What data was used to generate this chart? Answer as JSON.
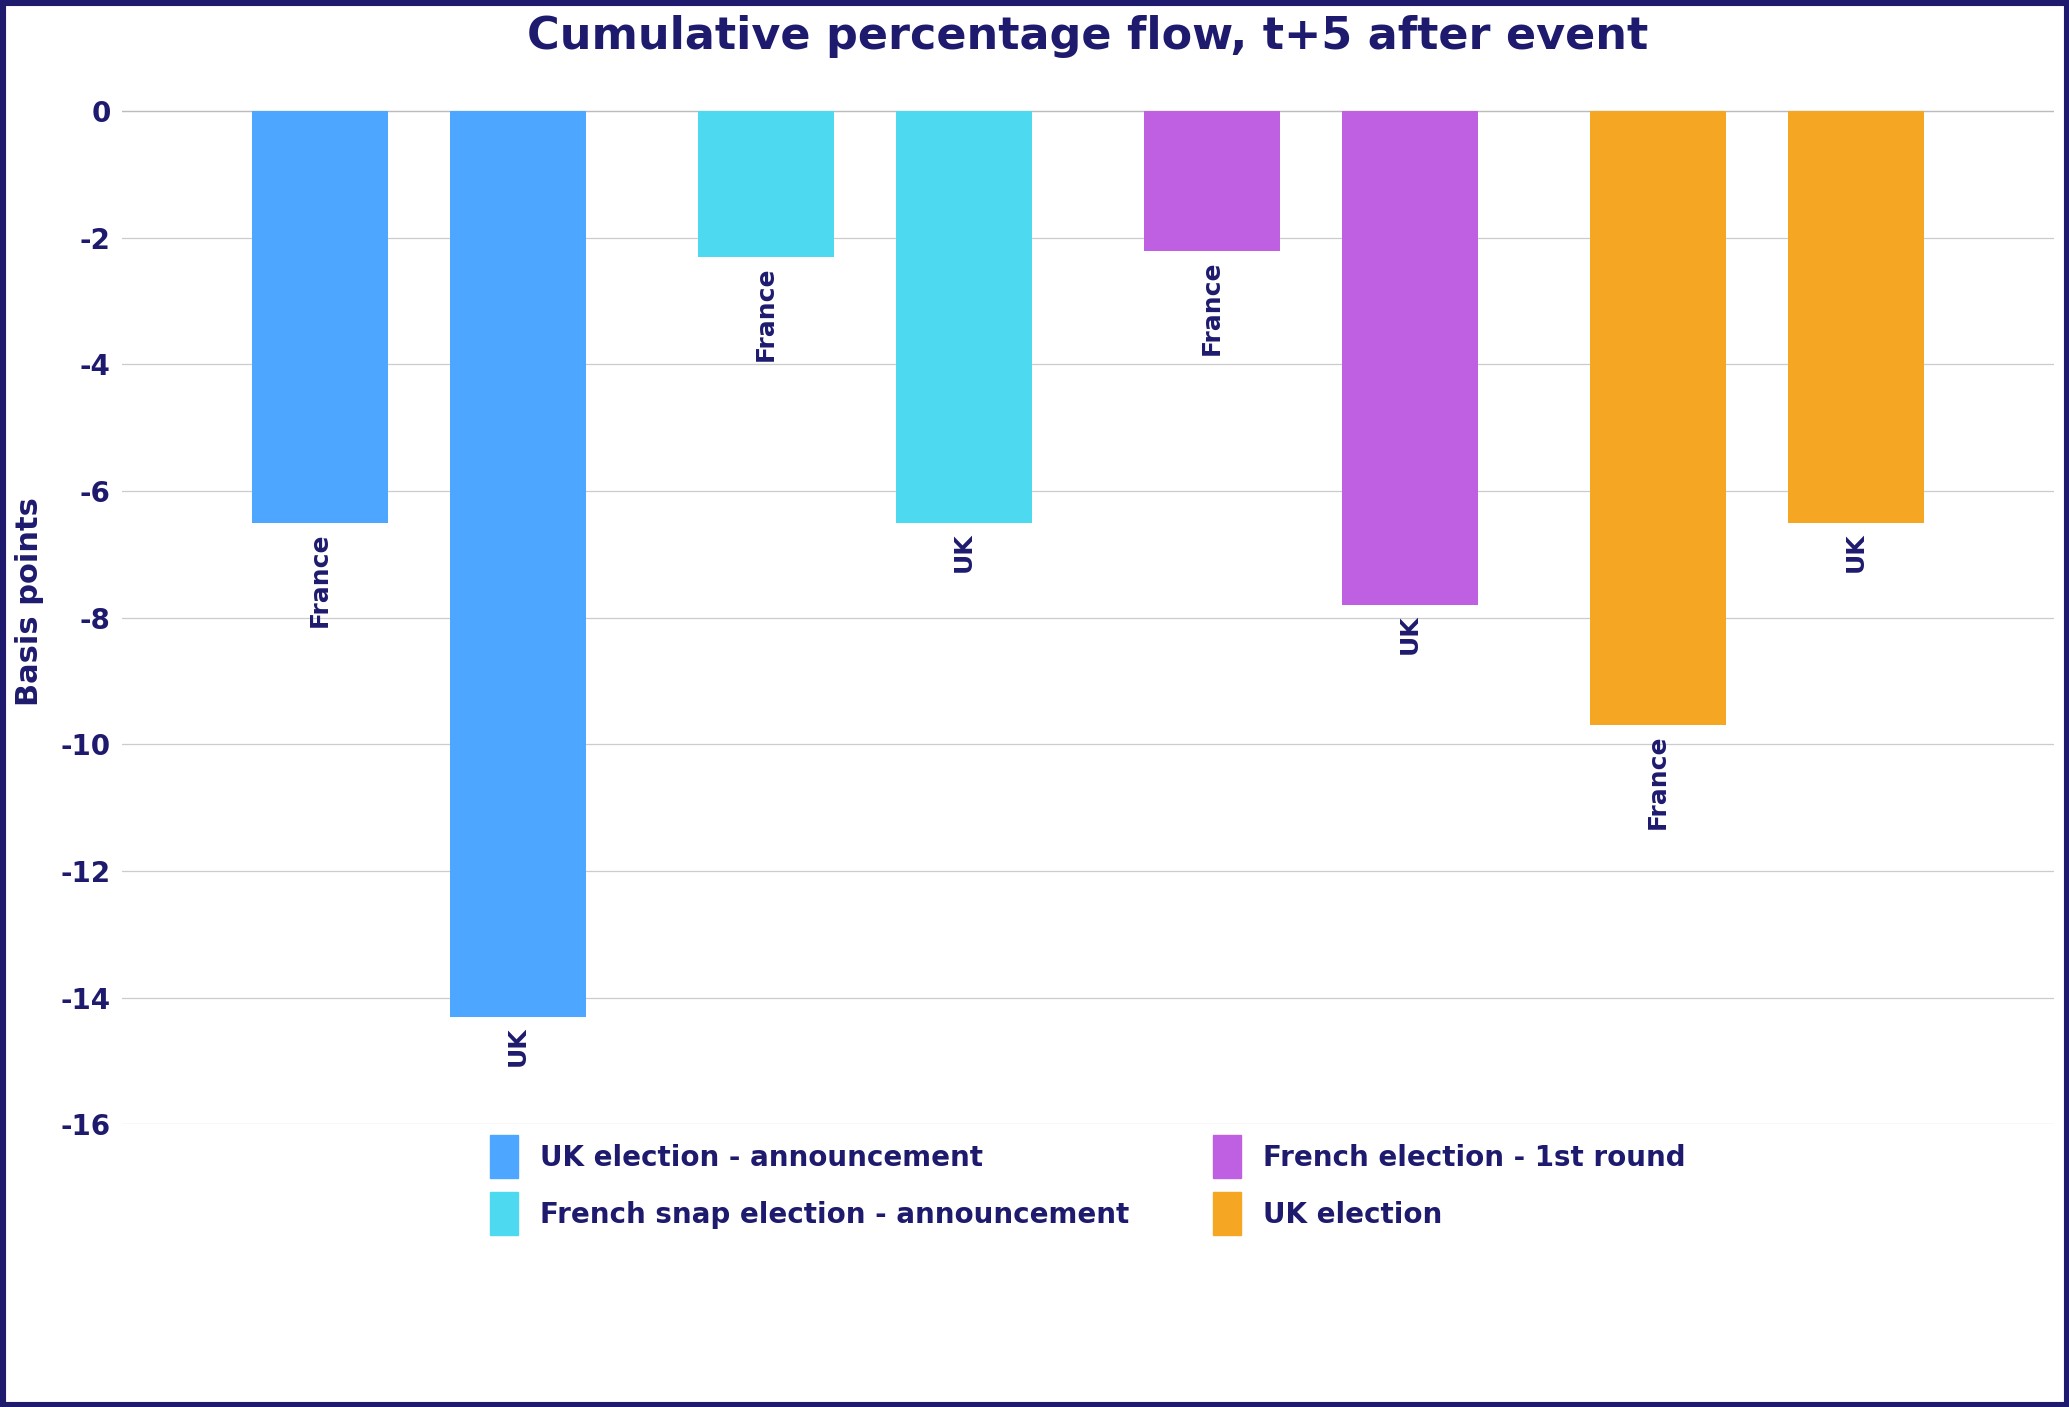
{
  "title": "Cumulative percentage flow, t+5 after event",
  "ylabel": "Basis points",
  "ylim": [
    -16,
    0.5
  ],
  "yticks": [
    0,
    -2,
    -4,
    -6,
    -8,
    -10,
    -12,
    -14,
    -16
  ],
  "background_color": "#ffffff",
  "border_color": "#1e1b6e",
  "title_color": "#1e1b6e",
  "label_color": "#1e1b6e",
  "groups": [
    {
      "name": "UK election - announcement",
      "color": "#4da6ff",
      "bars": [
        {
          "label": "France",
          "value": -6.5
        },
        {
          "label": "UK",
          "value": -14.3
        }
      ]
    },
    {
      "name": "French snap election - announcement",
      "color": "#4dd9f0",
      "bars": [
        {
          "label": "France",
          "value": -2.3
        },
        {
          "label": "UK",
          "value": -6.5
        }
      ]
    },
    {
      "name": "French election - 1st round",
      "color": "#bf5fe1",
      "bars": [
        {
          "label": "France",
          "value": -2.2
        },
        {
          "label": "UK",
          "value": -7.8
        }
      ]
    },
    {
      "name": "UK election",
      "color": "#f5a623",
      "bars": [
        {
          "label": "France",
          "value": -9.7
        },
        {
          "label": "UK",
          "value": -6.5
        }
      ]
    }
  ],
  "bar_width": 0.55,
  "title_fontsize": 32,
  "axis_fontsize": 22,
  "tick_fontsize": 20,
  "bar_label_fontsize": 18,
  "legend_fontsize": 20
}
